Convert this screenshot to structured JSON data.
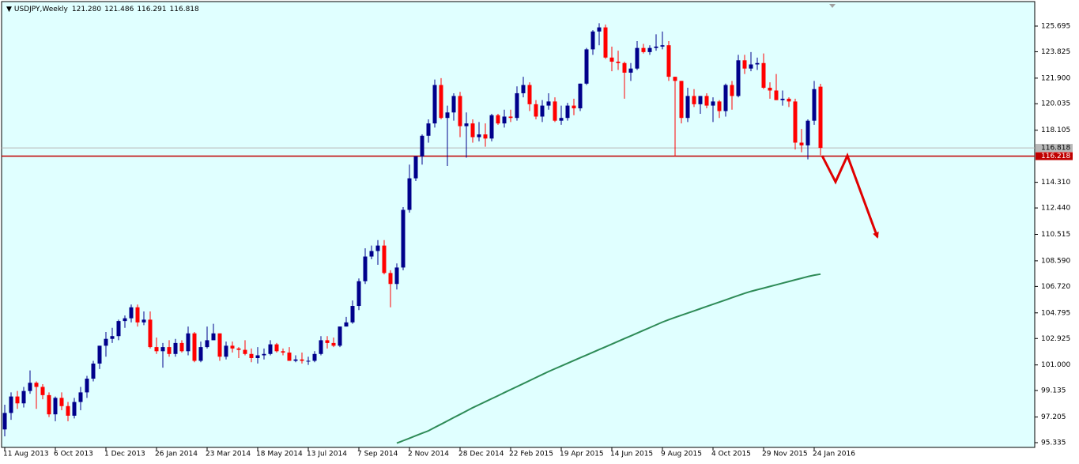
{
  "chart_data": {
    "type": "candlestick",
    "title": "USDJPY,Weekly",
    "header_values": [
      {
        "value": 121.28,
        "label": "121.280"
      },
      {
        "value": 121.486,
        "label": "121.486"
      },
      {
        "value": 116.291,
        "label": "116.291"
      },
      {
        "value": 116.818,
        "label": "116.818"
      }
    ],
    "categories": [
      "11 Aug 2013",
      null,
      null,
      null,
      null,
      null,
      null,
      null,
      "6 Oct 2013",
      null,
      null,
      null,
      null,
      null,
      null,
      null,
      "1 Dec 2013",
      null,
      null,
      null,
      null,
      null,
      null,
      null,
      "26 Jan 2014",
      null,
      null,
      null,
      null,
      null,
      null,
      null,
      "23 Mar 2014",
      null,
      null,
      null,
      null,
      null,
      null,
      null,
      "18 May 2014",
      null,
      null,
      null,
      null,
      null,
      null,
      null,
      "13 Jul 2014",
      null,
      null,
      null,
      null,
      null,
      null,
      null,
      "7 Sep 2014",
      null,
      null,
      null,
      null,
      null,
      null,
      null,
      "2 Nov 2014",
      null,
      null,
      null,
      null,
      null,
      null,
      null,
      "28 Dec 2014",
      null,
      null,
      null,
      null,
      null,
      null,
      null,
      "22 Feb 2015",
      null,
      null,
      null,
      null,
      null,
      null,
      null,
      "19 Apr 2015",
      null,
      null,
      null,
      null,
      null,
      null,
      null,
      "14 Jun 2015",
      null,
      null,
      null,
      null,
      null,
      null,
      null,
      "9 Aug 2015",
      null,
      null,
      null,
      null,
      null,
      null,
      null,
      "4 Oct 2015",
      null,
      null,
      null,
      null,
      null,
      null,
      null,
      "29 Nov 2015",
      null,
      null,
      null,
      null,
      null,
      null,
      null,
      "24 Jan 2016",
      null
    ],
    "open": [
      96.3,
      97.5,
      98.7,
      98.2,
      99.1,
      99.7,
      99.4,
      98.8,
      97.4,
      98.6,
      98.0,
      97.3,
      98.3,
      99.0,
      100.0,
      101.1,
      102.4,
      102.9,
      103.1,
      104.2,
      104.4,
      105.2,
      104.1,
      104.3,
      102.3,
      102.0,
      102.3,
      101.8,
      102.6,
      102.0,
      103.3,
      101.3,
      102.3,
      102.8,
      103.3,
      101.6,
      102.4,
      102.2,
      102.1,
      101.8,
      101.5,
      101.7,
      101.8,
      102.5,
      102.0,
      101.9,
      101.3,
      101.4,
      101.3,
      101.3,
      101.8,
      102.8,
      102.6,
      102.4,
      103.8,
      104.1,
      105.3,
      107.1,
      108.9,
      109.3,
      109.7,
      107.7,
      106.9,
      108.1,
      112.3,
      114.6,
      116.2,
      117.7,
      118.6,
      121.4,
      119.0,
      119.4,
      120.6,
      118.4,
      118.6,
      117.6,
      117.8,
      117.5,
      119.2,
      118.6,
      119.1,
      119.0,
      120.8,
      121.4,
      120.0,
      119.1,
      119.9,
      120.2,
      118.8,
      119.0,
      119.9,
      119.7,
      121.5,
      124.0,
      125.3,
      125.6,
      123.4,
      123.1,
      123.0,
      122.3,
      122.6,
      124.1,
      123.8,
      124.1,
      124.2,
      124.3,
      122.0,
      121.7,
      119.0,
      120.6,
      120.0,
      120.6,
      119.9,
      120.2,
      119.5,
      121.4,
      120.6,
      123.2,
      122.6,
      122.9,
      123.0,
      121.2,
      121.0,
      120.3,
      120.4,
      120.2,
      117.2,
      117.0,
      118.8,
      121.28
    ],
    "high": [
      98.1,
      99.0,
      99.1,
      99.4,
      100.6,
      99.8,
      99.6,
      99.0,
      98.7,
      99.0,
      98.3,
      98.6,
      99.4,
      100.2,
      101.3,
      102.4,
      103.4,
      103.7,
      104.3,
      104.6,
      105.4,
      105.4,
      104.9,
      104.9,
      103.0,
      102.6,
      102.8,
      102.9,
      102.8,
      103.8,
      103.4,
      102.7,
      103.8,
      104.0,
      103.3,
      102.7,
      102.7,
      102.3,
      102.8,
      102.2,
      102.3,
      102.2,
      102.8,
      102.6,
      102.2,
      102.3,
      101.7,
      101.9,
      101.6,
      102.0,
      103.1,
      103.1,
      103.0,
      103.8,
      104.5,
      105.7,
      107.3,
      109.5,
      109.7,
      110.1,
      110.1,
      107.9,
      108.4,
      112.5,
      115.6,
      116.1,
      117.8,
      118.9,
      121.8,
      121.9,
      119.9,
      120.8,
      120.9,
      119.4,
      118.9,
      118.7,
      118.6,
      119.3,
      119.3,
      119.6,
      119.6,
      121.3,
      122.0,
      121.6,
      120.3,
      120.3,
      120.8,
      120.5,
      119.9,
      120.1,
      120.4,
      121.5,
      124.1,
      125.4,
      125.9,
      125.8,
      124.2,
      123.9,
      123.1,
      123.0,
      124.6,
      124.4,
      124.3,
      125.1,
      125.3,
      124.6,
      122.0,
      121.7,
      121.2,
      121.1,
      120.6,
      120.8,
      120.5,
      120.3,
      121.5,
      121.7,
      123.6,
      123.6,
      123.8,
      123.4,
      123.7,
      121.6,
      122.2,
      121.0,
      120.5,
      120.4,
      118.2,
      118.9,
      121.7,
      121.486
    ],
    "low": [
      95.8,
      97.0,
      97.8,
      97.9,
      98.9,
      97.8,
      98.5,
      97.2,
      96.9,
      97.7,
      96.9,
      97.1,
      97.7,
      98.6,
      99.8,
      100.7,
      101.6,
      102.6,
      102.8,
      103.7,
      104.1,
      103.8,
      103.9,
      102.2,
      101.8,
      100.8,
      101.6,
      101.6,
      101.9,
      101.7,
      101.2,
      101.2,
      102.2,
      102.8,
      101.3,
      101.4,
      101.9,
      101.5,
      101.7,
      101.2,
      101.1,
      101.4,
      101.7,
      101.9,
      101.7,
      101.3,
      101.2,
      101.1,
      101.0,
      101.2,
      101.7,
      102.2,
      102.3,
      102.3,
      103.8,
      104.0,
      105.0,
      106.9,
      108.7,
      108.3,
      107.6,
      105.2,
      106.5,
      107.9,
      112.1,
      114.4,
      115.6,
      117.2,
      118.3,
      118.9,
      115.5,
      118.8,
      117.6,
      116.1,
      117.2,
      117.3,
      116.9,
      117.3,
      118.5,
      118.3,
      118.7,
      118.8,
      120.5,
      119.5,
      118.9,
      118.7,
      119.6,
      118.7,
      118.5,
      118.8,
      119.2,
      119.5,
      121.4,
      123.6,
      124.3,
      123.3,
      122.4,
      122.5,
      120.4,
      121.7,
      122.5,
      123.7,
      123.6,
      123.9,
      124.0,
      121.7,
      116.2,
      118.6,
      118.7,
      119.8,
      119.3,
      119.7,
      118.7,
      119.0,
      119.1,
      119.6,
      120.5,
      122.2,
      122.4,
      122.5,
      121.1,
      120.4,
      120.3,
      119.9,
      119.8,
      116.7,
      116.5,
      115.98,
      118.5,
      116.291
    ],
    "close": [
      97.5,
      98.7,
      98.2,
      99.1,
      99.7,
      99.4,
      98.8,
      97.4,
      98.6,
      98.0,
      97.3,
      98.3,
      99.0,
      100.0,
      101.1,
      102.4,
      102.9,
      103.1,
      104.2,
      104.4,
      105.2,
      104.1,
      104.3,
      102.3,
      102.0,
      102.3,
      101.8,
      102.6,
      102.0,
      103.3,
      101.3,
      102.3,
      102.8,
      103.3,
      101.6,
      102.4,
      102.2,
      102.1,
      101.8,
      101.5,
      101.7,
      101.8,
      102.5,
      102.0,
      101.9,
      101.3,
      101.4,
      101.3,
      101.3,
      101.8,
      102.8,
      102.6,
      102.4,
      103.8,
      104.1,
      105.3,
      107.1,
      108.9,
      109.3,
      109.7,
      107.7,
      106.9,
      108.1,
      112.3,
      114.6,
      116.2,
      117.7,
      118.6,
      121.4,
      119.0,
      119.4,
      120.6,
      118.4,
      118.6,
      117.6,
      117.8,
      117.5,
      119.2,
      118.6,
      119.1,
      119.0,
      120.8,
      121.4,
      120.0,
      119.1,
      119.9,
      120.2,
      118.8,
      119.0,
      119.9,
      119.7,
      121.5,
      124.0,
      125.3,
      125.6,
      123.4,
      123.1,
      123.0,
      122.3,
      122.6,
      124.1,
      123.8,
      124.1,
      124.2,
      124.3,
      122.0,
      121.7,
      119.0,
      120.6,
      120.0,
      120.6,
      119.9,
      120.2,
      119.5,
      121.4,
      120.6,
      123.2,
      122.6,
      122.9,
      123.0,
      121.2,
      121.0,
      120.3,
      120.4,
      120.2,
      117.2,
      117.0,
      118.8,
      121.1,
      116.818
    ],
    "up_color": "#00008b",
    "down_color": "#ff0000",
    "overlay": {
      "color": "#2e8b57",
      "values": [
        null,
        null,
        null,
        null,
        null,
        null,
        null,
        null,
        null,
        null,
        null,
        null,
        null,
        null,
        null,
        null,
        null,
        null,
        null,
        null,
        null,
        null,
        null,
        null,
        null,
        null,
        null,
        null,
        null,
        null,
        null,
        null,
        null,
        null,
        null,
        null,
        null,
        null,
        null,
        null,
        null,
        null,
        null,
        null,
        null,
        null,
        null,
        null,
        null,
        null,
        null,
        null,
        null,
        null,
        null,
        null,
        null,
        null,
        null,
        null,
        null,
        null,
        95.3,
        95.48,
        95.66,
        95.84,
        96.02,
        96.2,
        96.44,
        96.68,
        96.92,
        97.16,
        97.4,
        97.64,
        97.88,
        98.1,
        98.32,
        98.54,
        98.76,
        98.98,
        99.2,
        99.42,
        99.64,
        99.86,
        100.08,
        100.3,
        100.52,
        100.72,
        100.92,
        101.12,
        101.32,
        101.52,
        101.72,
        101.92,
        102.12,
        102.32,
        102.52,
        102.72,
        102.92,
        103.12,
        103.32,
        103.52,
        103.72,
        103.92,
        104.12,
        104.3,
        104.46,
        104.62,
        104.78,
        104.94,
        105.1,
        105.26,
        105.42,
        105.58,
        105.74,
        105.9,
        106.06,
        106.22,
        106.36,
        106.48,
        106.6,
        106.72,
        106.84,
        106.96,
        107.08,
        107.2,
        107.32,
        107.44,
        107.54,
        107.62
      ]
    },
    "price_lines": [
      {
        "value": 116.818,
        "label": "116.818",
        "color": "#b8b8b8"
      },
      {
        "value": 116.218,
        "label": "116.218",
        "color": "#c00000"
      }
    ],
    "ylim": [
      94.99,
      127.48
    ],
    "yticks": [
      125.695,
      123.825,
      {
        "value": 121.9,
        "label": "121.900"
      },
      120.035,
      118.105,
      {
        "value": 114.31,
        "label": "114.310"
      },
      {
        "value": 112.44,
        "label": "112.440"
      },
      110.515,
      {
        "value": 108.59,
        "label": "108.590"
      },
      {
        "value": 106.72,
        "label": "106.720"
      },
      104.795,
      102.925,
      {
        "value": 101,
        "label": "101.000"
      },
      99.135,
      97.205,
      95.335
    ]
  }
}
